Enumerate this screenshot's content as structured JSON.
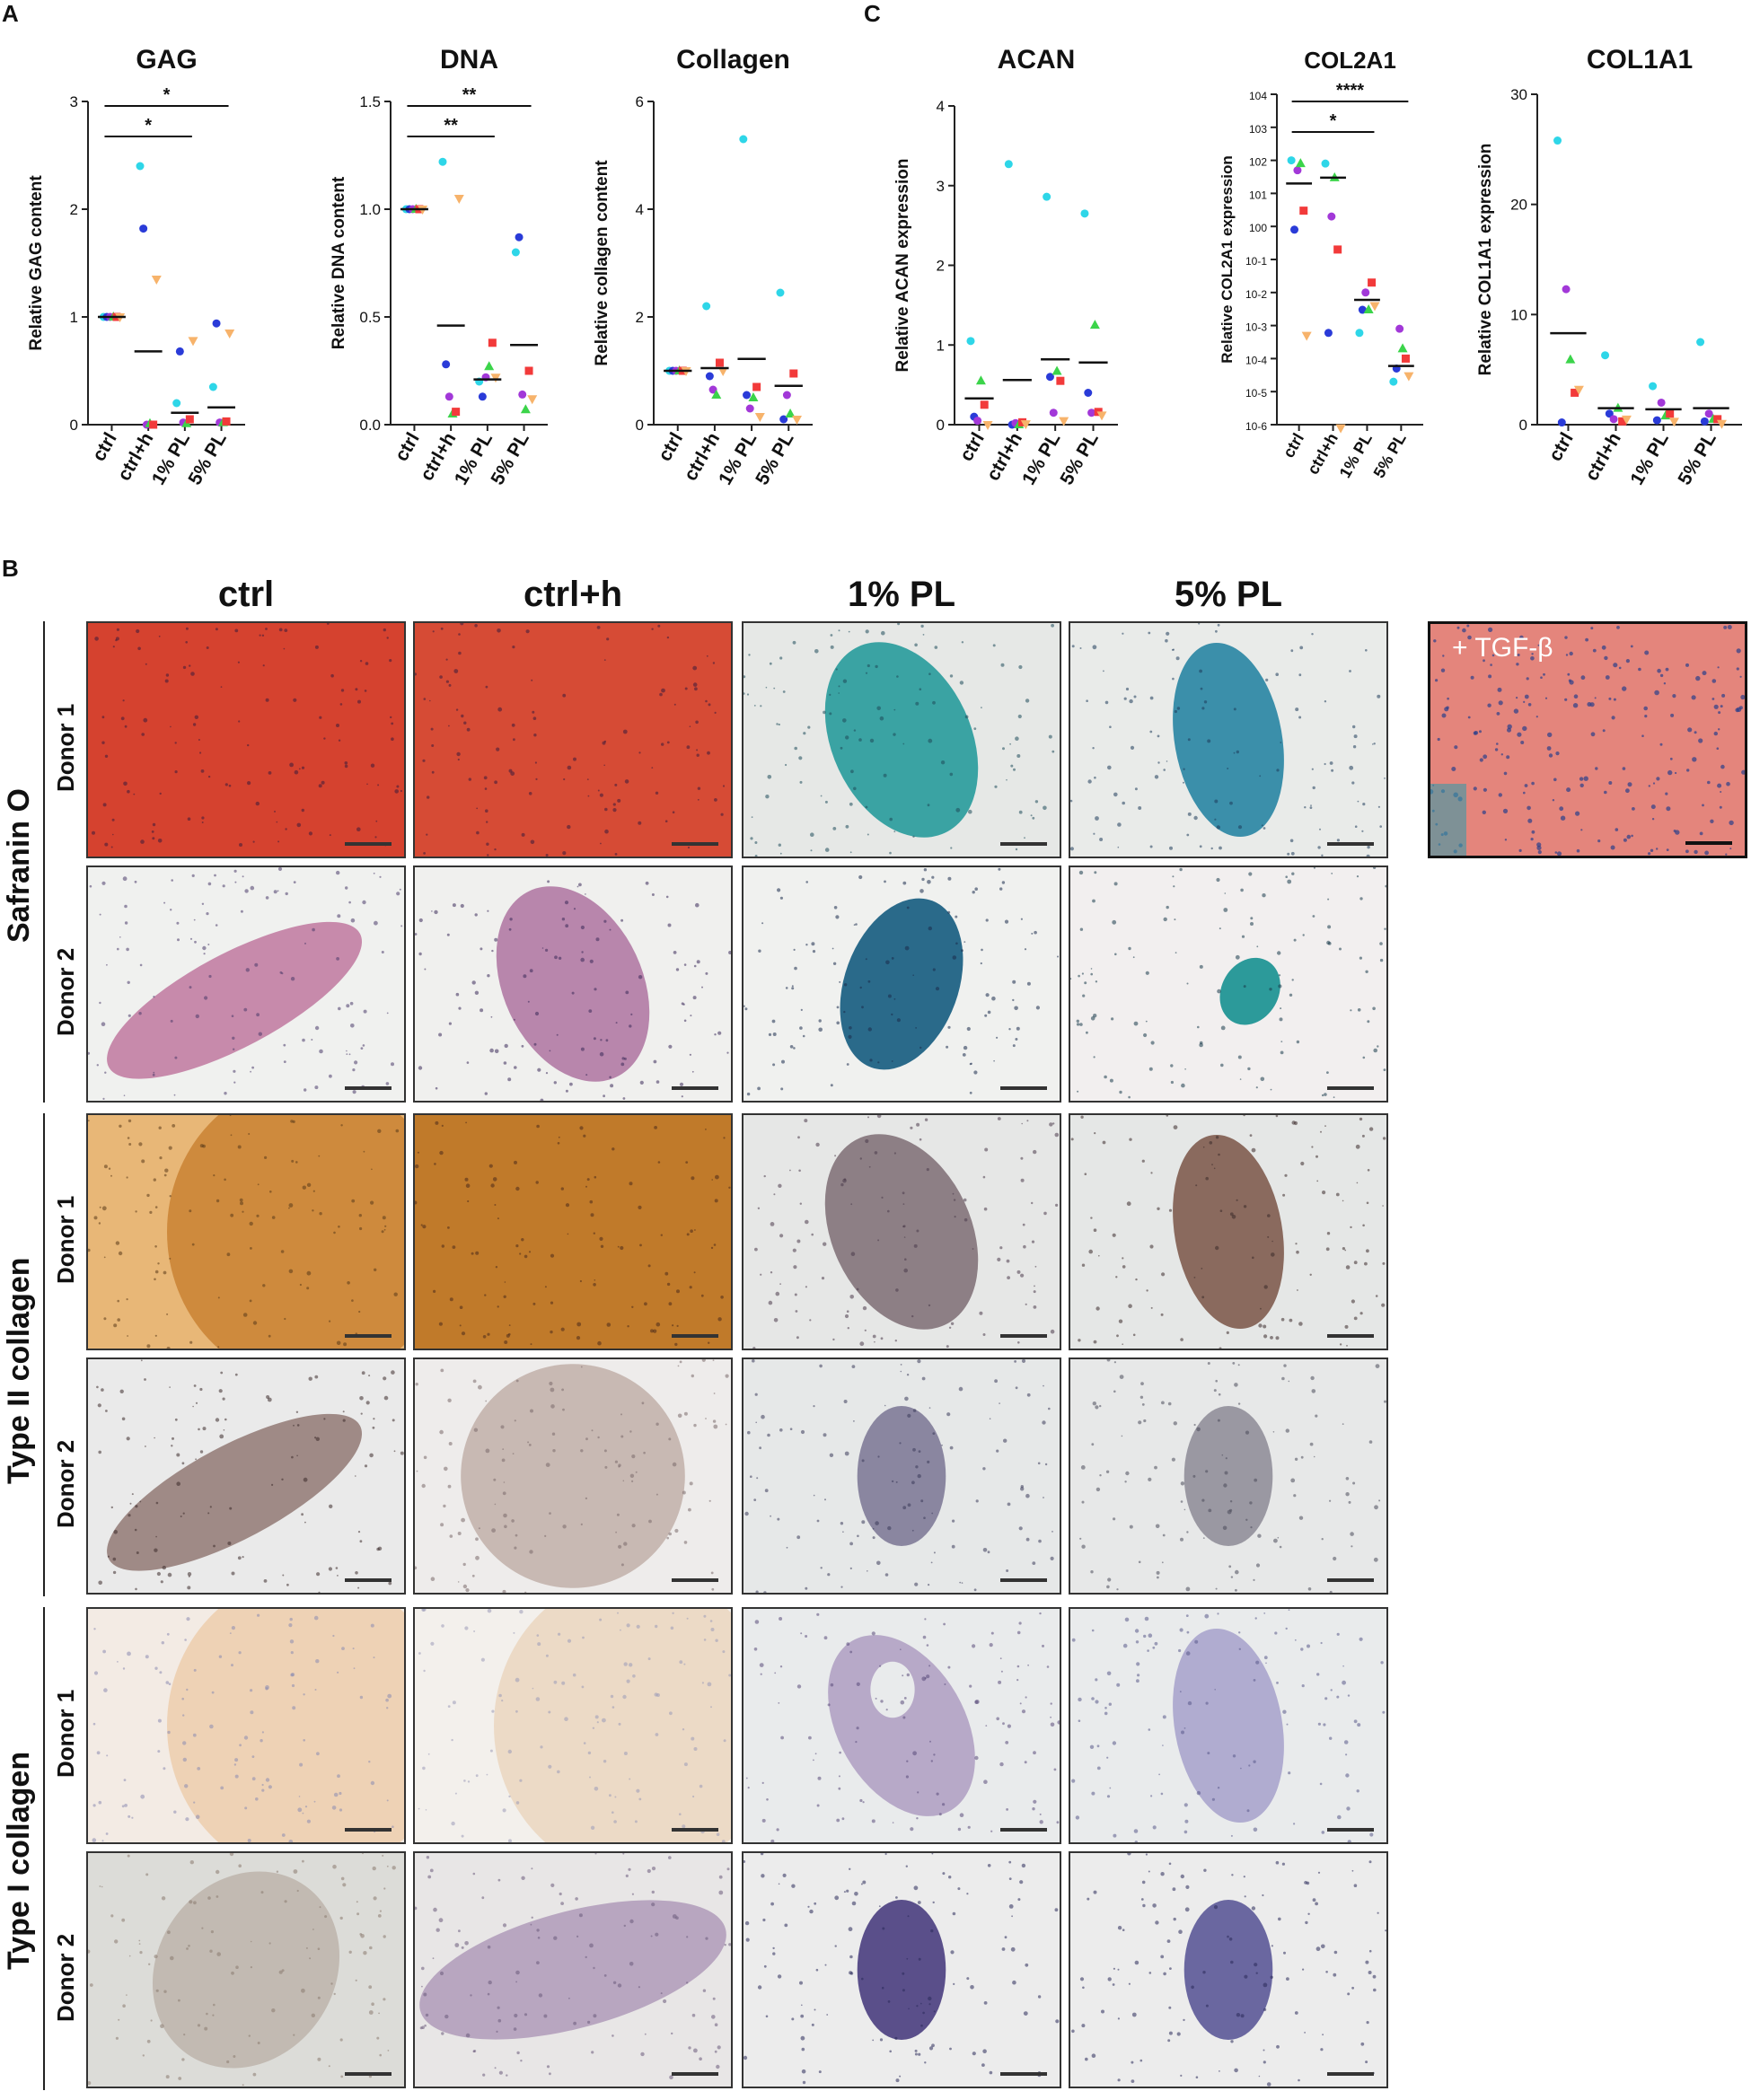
{
  "panels": {
    "A": "A",
    "B": "B",
    "C": "C"
  },
  "groups": [
    "ctrl",
    "ctrl+h",
    "1% PL",
    "5% PL"
  ],
  "donor_colors": [
    "#2ed6e8",
    "#2a3bd8",
    "#a238d8",
    "#3bd44a",
    "#f23a3a",
    "#f7b36b"
  ],
  "chart_data": [
    {
      "type": "scatter",
      "title": "GAG",
      "ylabel": "Relative GAG content",
      "ylim": [
        0,
        3
      ],
      "yticks": [
        "0",
        "1",
        "2",
        "3"
      ],
      "categories": [
        "ctrl",
        "ctrl+h",
        "1% PL",
        "5% PL"
      ],
      "series": [
        {
          "values": [
            1,
            2.4,
            0.2,
            0.35
          ]
        },
        {
          "values": [
            1,
            1.82,
            0.68,
            0.94
          ]
        },
        {
          "values": [
            1,
            0.0,
            0.02,
            0.02
          ]
        },
        {
          "values": [
            1,
            0.01,
            0.01,
            0.02
          ]
        },
        {
          "values": [
            1,
            0.0,
            0.05,
            0.03
          ]
        },
        {
          "values": [
            1,
            1.35,
            0.78,
            0.85
          ]
        }
      ],
      "means": [
        1,
        0.68,
        0.11,
        0.16
      ],
      "significance": [
        {
          "from": "ctrl",
          "to": "1% PL",
          "label": "*"
        },
        {
          "from": "ctrl",
          "to": "5% PL",
          "label": "*"
        }
      ]
    },
    {
      "type": "scatter",
      "title": "DNA",
      "ylabel": "Relative DNA content",
      "ylim": [
        0,
        1.5
      ],
      "yticks": [
        "0.0",
        "0.5",
        "1.0",
        "1.5"
      ],
      "categories": [
        "ctrl",
        "ctrl+h",
        "1% PL",
        "5% PL"
      ],
      "series": [
        {
          "values": [
            1,
            1.22,
            0.2,
            0.8
          ]
        },
        {
          "values": [
            1,
            0.28,
            0.13,
            0.87
          ]
        },
        {
          "values": [
            1,
            0.13,
            0.22,
            0.14
          ]
        },
        {
          "values": [
            1,
            0.05,
            0.27,
            0.07
          ]
        },
        {
          "values": [
            1,
            0.06,
            0.38,
            0.25
          ]
        },
        {
          "values": [
            1,
            1.05,
            0.22,
            0.12
          ]
        }
      ],
      "means": [
        1,
        0.46,
        0.21,
        0.37
      ],
      "significance": [
        {
          "from": "ctrl",
          "to": "1% PL",
          "label": "**"
        },
        {
          "from": "ctrl",
          "to": "5% PL",
          "label": "**"
        }
      ]
    },
    {
      "type": "scatter",
      "title": "Collagen",
      "ylabel": "Relative collagen content",
      "ylim": [
        0,
        6
      ],
      "yticks": [
        "0",
        "2",
        "4",
        "6"
      ],
      "categories": [
        "ctrl",
        "ctrl+h",
        "1% PL",
        "5% PL"
      ],
      "series": [
        {
          "values": [
            1,
            2.2,
            5.3,
            2.45
          ]
        },
        {
          "values": [
            1,
            0.9,
            0.55,
            0.1
          ]
        },
        {
          "values": [
            1,
            0.65,
            0.3,
            0.55
          ]
        },
        {
          "values": [
            1,
            0.55,
            0.5,
            0.2
          ]
        },
        {
          "values": [
            1,
            1.15,
            0.7,
            0.95
          ]
        },
        {
          "values": [
            1,
            1.0,
            0.15,
            0.1
          ]
        }
      ],
      "means": [
        1,
        1.05,
        1.22,
        0.72
      ],
      "significance": []
    },
    {
      "type": "scatter",
      "title": "ACAN",
      "ylabel": "Relative ACAN expression",
      "ylim": [
        0,
        4
      ],
      "yticks": [
        "0",
        "1",
        "2",
        "3",
        "4"
      ],
      "categories": [
        "ctrl",
        "ctrl+h",
        "1% PL",
        "5% PL"
      ],
      "series": [
        {
          "values": [
            1.05,
            3.27,
            2.86,
            2.65
          ]
        },
        {
          "values": [
            0.1,
            0.0,
            0.6,
            0.4
          ]
        },
        {
          "values": [
            0.05,
            0.02,
            0.15,
            0.15
          ]
        },
        {
          "values": [
            0.55,
            0.0,
            0.67,
            1.25
          ]
        },
        {
          "values": [
            0.25,
            0.03,
            0.55,
            0.16
          ]
        },
        {
          "values": [
            0.0,
            0.01,
            0.05,
            0.12
          ]
        }
      ],
      "means": [
        0.33,
        0.56,
        0.82,
        0.78
      ],
      "significance": []
    },
    {
      "type": "scatter",
      "title": "COL2A1",
      "ylabel": "Relative COL2A1 expression",
      "yscale": "log",
      "ylim": [
        1e-06,
        10000.0
      ],
      "yticks": [
        "10-6",
        "10-5",
        "10-4",
        "10-3",
        "10-2",
        "10-1",
        "100",
        "101",
        "102",
        "103",
        "104"
      ],
      "categories": [
        "ctrl",
        "ctrl+h",
        "1% PL",
        "5% PL"
      ],
      "series": [
        {
          "values": [
            100,
            80,
            0.0006,
            2e-05
          ]
        },
        {
          "values": [
            0.8,
            0.0006,
            0.003,
            5e-05
          ]
        },
        {
          "values": [
            50,
            2,
            0.01,
            0.0008
          ]
        },
        {
          "values": [
            80,
            30,
            0.003,
            0.0002
          ]
        },
        {
          "values": [
            3,
            0.2,
            0.02,
            0.0001
          ]
        },
        {
          "values": [
            0.0005,
            8e-07,
            0.004,
            3e-05
          ]
        }
      ],
      "means": [
        20,
        30,
        0.006,
        6e-05
      ],
      "significance": [
        {
          "from": "ctrl",
          "to": "1% PL",
          "label": "*"
        },
        {
          "from": "ctrl",
          "to": "5% PL",
          "label": "****"
        }
      ]
    },
    {
      "type": "scatter",
      "title": "COL1A1",
      "ylabel": "Relative COL1A1 expression",
      "ylim": [
        0,
        30
      ],
      "yticks": [
        "0",
        "10",
        "20",
        "30"
      ],
      "categories": [
        "ctrl",
        "ctrl+h",
        "1% PL",
        "5% PL"
      ],
      "series": [
        {
          "values": [
            25.8,
            6.3,
            3.5,
            7.5
          ]
        },
        {
          "values": [
            0.2,
            1.0,
            0.4,
            0.3
          ]
        },
        {
          "values": [
            12.3,
            0.5,
            2.0,
            1.0
          ]
        },
        {
          "values": [
            5.9,
            1.5,
            0.8,
            0.5
          ]
        },
        {
          "values": [
            2.9,
            0.3,
            1.0,
            0.5
          ]
        },
        {
          "values": [
            3.2,
            0.5,
            0.3,
            0.1
          ]
        }
      ],
      "means": [
        8.3,
        1.5,
        1.4,
        1.5
      ],
      "significance": []
    }
  ],
  "histology": {
    "columns": [
      "ctrl",
      "ctrl+h",
      "1% PL",
      "5% PL"
    ],
    "stains": [
      "Safranin O",
      "Type II collagen",
      "Type I collagen"
    ],
    "donors": [
      "Donor 1",
      "Donor 2"
    ],
    "inset_label": "+ TGF-β"
  }
}
